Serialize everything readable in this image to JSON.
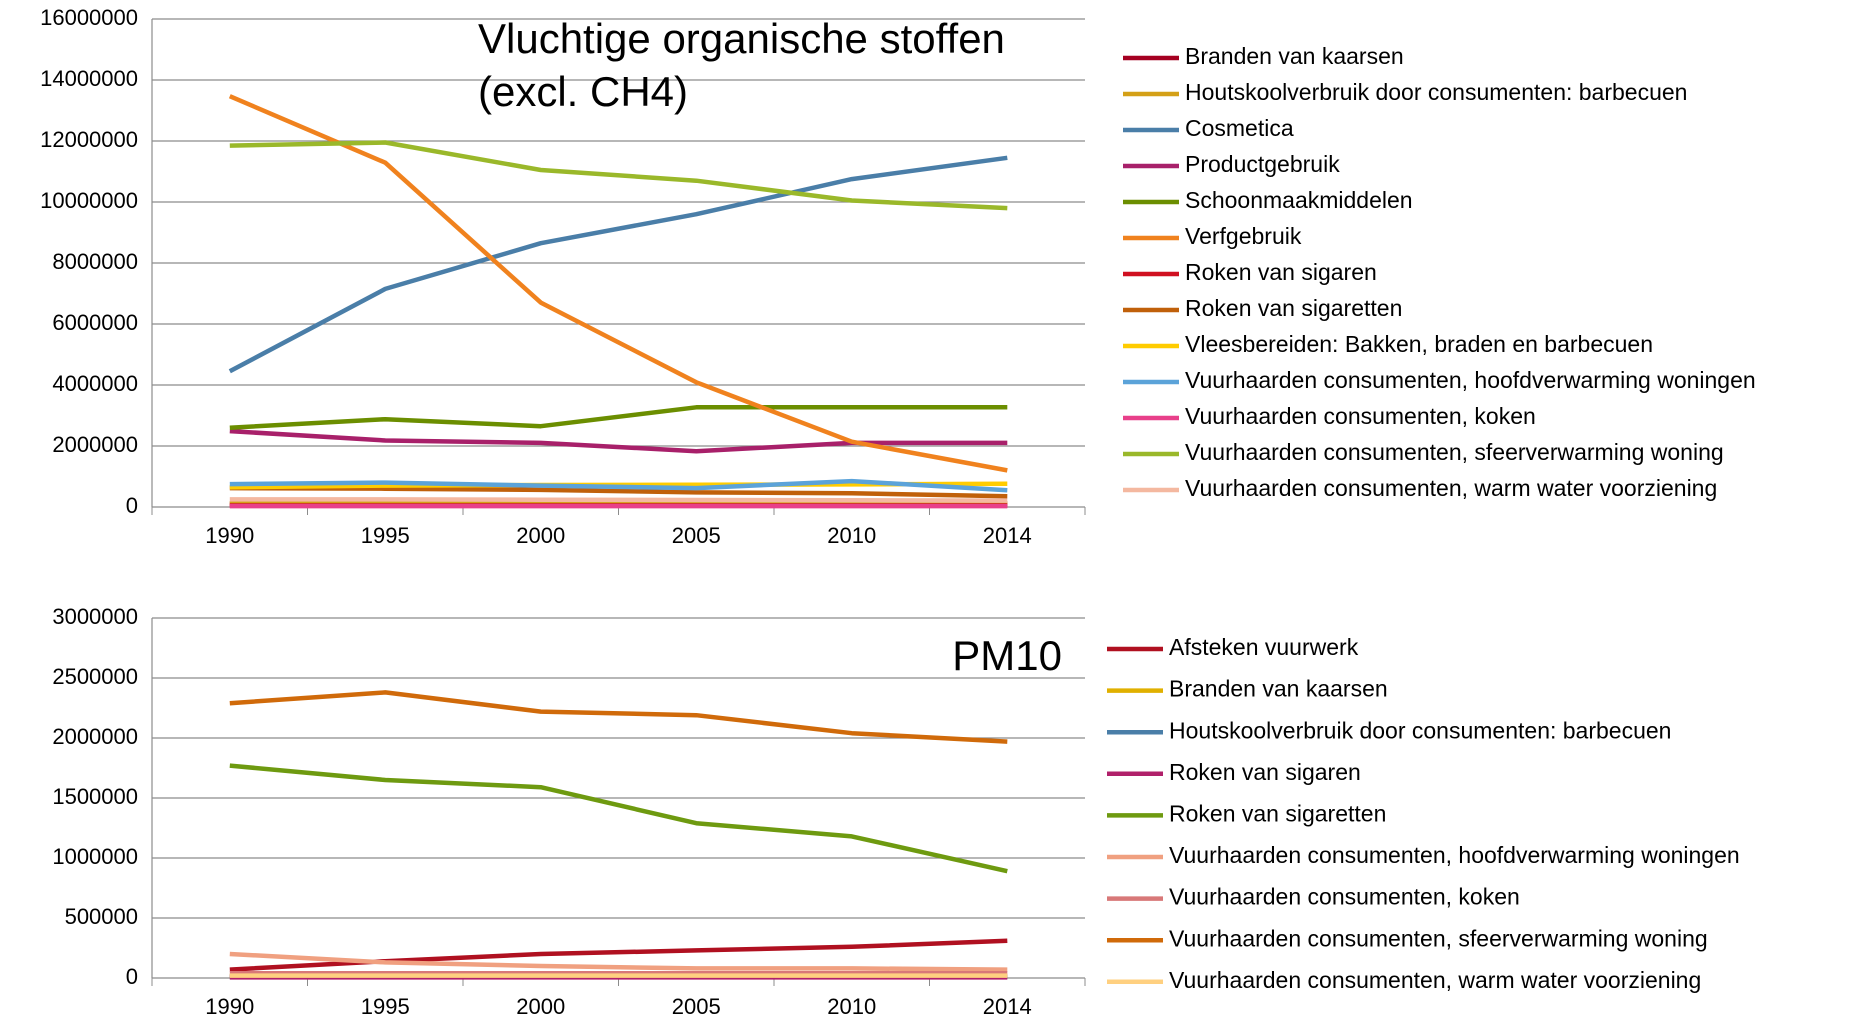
{
  "chart_data": [
    {
      "type": "line",
      "title": [
        "Vluchtige organische stoffen",
        "(excl. CH4)"
      ],
      "categories": [
        "1990",
        "1995",
        "2000",
        "2005",
        "2010",
        "2014"
      ],
      "ylim": [
        0,
        16000000
      ],
      "yticks": [
        0,
        2000000,
        4000000,
        6000000,
        8000000,
        10000000,
        12000000,
        14000000,
        16000000
      ],
      "grid": true,
      "legend": "right",
      "series": [
        {
          "name": "Branden van kaarsen",
          "color": "#a50021",
          "values": [
            100000,
            100000,
            100000,
            100000,
            100000,
            100000
          ]
        },
        {
          "name": "Houtskoolverbruik door consumenten: barbecuen",
          "color": "#d4a017",
          "values": [
            120000,
            120000,
            120000,
            120000,
            120000,
            120000
          ]
        },
        {
          "name": "Cosmetica",
          "color": "#4a7ea8",
          "values": [
            4450000,
            7150000,
            8650000,
            9600000,
            10750000,
            11450000
          ]
        },
        {
          "name": "Productgebruik",
          "color": "#a8206a",
          "values": [
            2490000,
            2180000,
            2100000,
            1830000,
            2100000,
            2100000
          ]
        },
        {
          "name": "Schoonmaakmiddelen",
          "color": "#6b8e00",
          "values": [
            2600000,
            2880000,
            2650000,
            3270000,
            3270000,
            3270000
          ]
        },
        {
          "name": "Verfgebruik",
          "color": "#f0821e",
          "values": [
            13470000,
            11290000,
            6700000,
            4090000,
            2140000,
            1200000
          ]
        },
        {
          "name": "Roken van sigaren",
          "color": "#d01020",
          "values": [
            50000,
            50000,
            50000,
            50000,
            50000,
            50000
          ]
        },
        {
          "name": "Roken van sigaretten",
          "color": "#c0600a",
          "values": [
            620000,
            600000,
            560000,
            480000,
            450000,
            350000
          ]
        },
        {
          "name": "Vleesbereiden: Bakken, braden en barbecuen",
          "color": "#ffcc00",
          "values": [
            650000,
            700000,
            720000,
            730000,
            740000,
            760000
          ]
        },
        {
          "name": "Vuurhaarden consumenten, hoofdverwarming woningen",
          "color": "#5ba3d9",
          "values": [
            750000,
            800000,
            700000,
            620000,
            850000,
            550000
          ]
        },
        {
          "name": "Vuurhaarden consumenten, koken",
          "color": "#e8408a",
          "values": [
            30000,
            30000,
            30000,
            30000,
            30000,
            30000
          ]
        },
        {
          "name": "Vuurhaarden consumenten, sfeerverwarming woning",
          "color": "#9ab82a",
          "values": [
            11850000,
            11950000,
            11050000,
            10700000,
            10050000,
            9800000
          ]
        },
        {
          "name": "Vuurhaarden consumenten, warm water voorziening",
          "color": "#f4b8a0",
          "values": [
            250000,
            250000,
            240000,
            230000,
            220000,
            210000
          ]
        }
      ]
    },
    {
      "type": "line",
      "title": [
        "PM10"
      ],
      "categories": [
        "1990",
        "1995",
        "2000",
        "2005",
        "2010",
        "2014"
      ],
      "ylim": [
        0,
        3000000
      ],
      "yticks": [
        0,
        500000,
        1000000,
        1500000,
        2000000,
        2500000,
        3000000
      ],
      "grid": true,
      "legend": "right",
      "series": [
        {
          "name": "Afsteken vuurwerk",
          "color": "#b01020",
          "values": [
            70000,
            140000,
            200000,
            230000,
            260000,
            310000
          ]
        },
        {
          "name": "Branden van kaarsen",
          "color": "#e0b000",
          "values": [
            15000,
            15000,
            15000,
            15000,
            15000,
            15000
          ]
        },
        {
          "name": "Houtskoolverbruik door consumenten: barbecuen",
          "color": "#4a7ea8",
          "values": [
            10000,
            10000,
            10000,
            10000,
            10000,
            10000
          ]
        },
        {
          "name": "Roken van sigaren",
          "color": "#b0206a",
          "values": [
            5000,
            5000,
            5000,
            5000,
            5000,
            5000
          ]
        },
        {
          "name": "Roken van sigaretten",
          "color": "#6e9a10",
          "values": [
            1770000,
            1650000,
            1590000,
            1290000,
            1180000,
            890000
          ]
        },
        {
          "name": "Vuurhaarden consumenten, hoofdverwarming woningen",
          "color": "#f0a080",
          "values": [
            200000,
            130000,
            100000,
            80000,
            80000,
            70000
          ]
        },
        {
          "name": "Vuurhaarden consumenten, koken",
          "color": "#d87878",
          "values": [
            40000,
            40000,
            40000,
            40000,
            40000,
            40000
          ]
        },
        {
          "name": "Vuurhaarden consumenten, sfeerverwarming woning",
          "color": "#d06a0a",
          "values": [
            2290000,
            2380000,
            2220000,
            2190000,
            2040000,
            1970000
          ]
        },
        {
          "name": "Vuurhaarden consumenten, warm water voorziening",
          "color": "#ffd080",
          "values": [
            20000,
            20000,
            20000,
            20000,
            20000,
            20000
          ]
        }
      ]
    }
  ]
}
